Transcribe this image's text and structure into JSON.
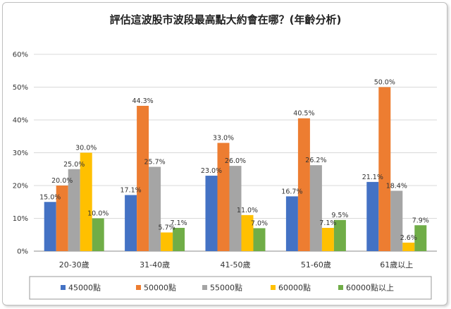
{
  "chart_data": {
    "type": "bar",
    "title": "評估這波股市波段最高點大約會在哪？(年齡分析)",
    "categories": [
      "20-30歲",
      "31-40歲",
      "41-50歲",
      "51-60歲",
      "61歲以上"
    ],
    "series": [
      {
        "name": "45000點",
        "color": "#4472C4",
        "values": [
          15.0,
          17.1,
          23.0,
          16.7,
          21.1
        ],
        "labels": [
          "15.0%",
          "17.1%",
          "23.0%",
          "16.7%",
          "21.1%"
        ]
      },
      {
        "name": "50000點",
        "color": "#ED7D31",
        "values": [
          20.0,
          44.3,
          33.0,
          40.5,
          50.0
        ],
        "labels": [
          "20.0%",
          "44.3%",
          "33.0%",
          "40.5%",
          "50.0%"
        ]
      },
      {
        "name": "55000點",
        "color": "#A5A5A5",
        "values": [
          25.0,
          25.7,
          26.0,
          26.2,
          18.4
        ],
        "labels": [
          "25.0%",
          "25.7%",
          "26.0%",
          "26.2%",
          "18.4%"
        ]
      },
      {
        "name": "60000點",
        "color": "#FFC000",
        "values": [
          30.0,
          5.7,
          11.0,
          7.1,
          2.6
        ],
        "labels": [
          "30.0%",
          "5.7%",
          "11.0%",
          "7.1%",
          "2.6%"
        ]
      },
      {
        "name": "60000點以上",
        "color": "#70AD47",
        "values": [
          10.0,
          7.1,
          7.0,
          9.5,
          7.9
        ],
        "labels": [
          "10.0%",
          "7.1%",
          "7.0%",
          "9.5%",
          "7.9%"
        ]
      }
    ],
    "yticks": [
      "0%",
      "10%",
      "20%",
      "30%",
      "40%",
      "50%",
      "60%"
    ],
    "ylim": [
      0,
      60
    ],
    "grid": true,
    "legend_position": "bottom"
  }
}
